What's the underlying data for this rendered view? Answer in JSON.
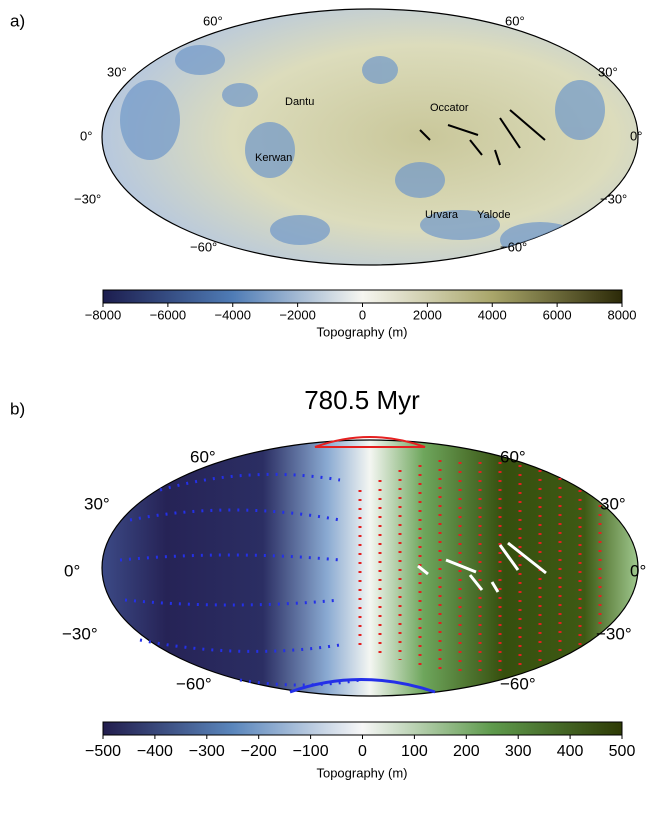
{
  "panels": [
    {
      "label": "a)",
      "lat_labels": [
        "60°",
        "30°",
        "0°",
        "−30°",
        "−60°"
      ],
      "places": [
        "Dantu",
        "Occator",
        "Kerwan",
        "Urvara",
        "Yalode"
      ],
      "colorbar": {
        "lim": [
          -8000,
          8000
        ],
        "ticks": [
          {
            "value": -8000,
            "label": "−8000"
          },
          {
            "value": -6000,
            "label": "−6000"
          },
          {
            "value": -4000,
            "label": "−4000"
          },
          {
            "value": -2000,
            "label": "−2000"
          },
          0,
          2000,
          4000,
          6000,
          8000
        ],
        "label": "Topography (m)"
      }
    },
    {
      "label": "b)",
      "title": "780.5 Myr",
      "lat_labels": [
        "60°",
        "30°",
        "0°",
        "−30°",
        "−60°"
      ],
      "colorbar": {
        "lim": [
          -500,
          500
        ],
        "ticks": [
          {
            "value": -500,
            "label": "−500"
          },
          {
            "value": -400,
            "label": "−400"
          },
          {
            "value": -300,
            "label": "−300"
          },
          {
            "value": -200,
            "label": "−200"
          },
          {
            "value": -100,
            "label": "−100"
          },
          0,
          100,
          200,
          300,
          400,
          500
        ],
        "label": "Topography (m)"
      }
    }
  ]
}
